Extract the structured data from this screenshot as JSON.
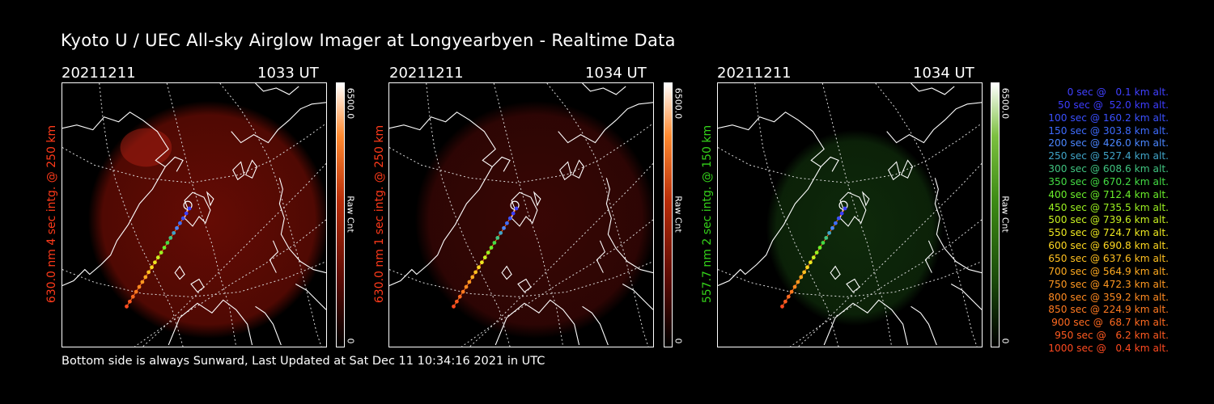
{
  "title": "Kyoto U / UEC All-sky Airglow Imager at Longyearbyen - Realtime Data",
  "footer": "Bottom side is always Sunward, Last Updated at Sat Dec 11 10:34:16 2021 in UTC",
  "panels": [
    {
      "date": "20211211",
      "time": "1033 UT",
      "ylabel": "630.0 nm 4 sec intg. @ 250 km",
      "cbar_max": "6500.0",
      "cbar_min": "0",
      "cbar_unit": "Raw Cnt",
      "label_color": "#ff3a1a",
      "glow_color": "#6a0c04"
    },
    {
      "date": "20211211",
      "time": "1034 UT",
      "ylabel": "630.0 nm 1 sec intg. @ 250 km",
      "cbar_max": "6500.0",
      "cbar_min": "0",
      "cbar_unit": "Raw Cnt",
      "label_color": "#ff3a1a",
      "glow_color": "#3c0705"
    },
    {
      "date": "20211211",
      "time": "1034 UT",
      "ylabel": "557.7 nm 2 sec intg. @ 150 km",
      "cbar_max": "6500.0",
      "cbar_min": "0",
      "cbar_unit": "Raw Cnt",
      "label_color": "#34d21a",
      "glow_color": "#0f2c0b"
    }
  ],
  "legend": [
    {
      "text": "0 sec @   0.1 km alt.",
      "color": "#4040ff"
    },
    {
      "text": "50 sec @  52.0 km alt.",
      "color": "#3c3cff"
    },
    {
      "text": "100 sec @ 160.2 km alt.",
      "color": "#3a50ff"
    },
    {
      "text": "150 sec @ 303.8 km alt.",
      "color": "#3e6cff"
    },
    {
      "text": "200 sec @ 426.0 km alt.",
      "color": "#4a86ff"
    },
    {
      "text": "250 sec @ 527.4 km alt.",
      "color": "#40a4c8"
    },
    {
      "text": "300 sec @ 608.6 km alt.",
      "color": "#40c480"
    },
    {
      "text": "350 sec @ 670.2 km alt.",
      "color": "#44dc44"
    },
    {
      "text": "400 sec @ 712.4 km alt.",
      "color": "#6aee2a"
    },
    {
      "text": "450 sec @ 735.5 km alt.",
      "color": "#9af020"
    },
    {
      "text": "500 sec @ 739.6 km alt.",
      "color": "#c8f020"
    },
    {
      "text": "550 sec @ 724.7 km alt.",
      "color": "#eee820"
    },
    {
      "text": "600 sec @ 690.8 km alt.",
      "color": "#ffd820"
    },
    {
      "text": "650 sec @ 637.6 km alt.",
      "color": "#ffc020"
    },
    {
      "text": "700 sec @ 564.9 km alt.",
      "color": "#ffaa20"
    },
    {
      "text": "750 sec @ 472.3 km alt.",
      "color": "#ff9820"
    },
    {
      "text": "800 sec @ 359.2 km alt.",
      "color": "#ff8a20"
    },
    {
      "text": "850 sec @ 224.9 km alt.",
      "color": "#ff7a20"
    },
    {
      "text": "900 sec @  68.7 km alt.",
      "color": "#ff6a20"
    },
    {
      "text": "950 sec @   6.2 km alt.",
      "color": "#ff5a20"
    },
    {
      "text": "1000 sec @   0.4 km alt.",
      "color": "#ff4a20"
    }
  ]
}
